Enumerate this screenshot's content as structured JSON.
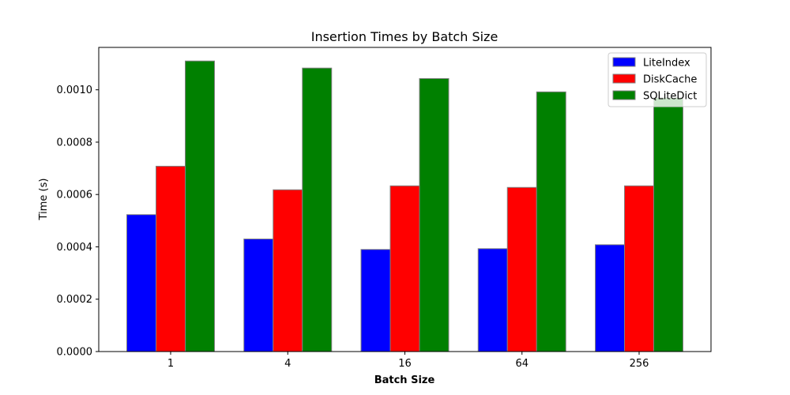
{
  "chart_data": {
    "type": "bar",
    "title": "Insertion Times by Batch Size",
    "xlabel": "Batch Size",
    "ylabel": "Time (s)",
    "categories": [
      "1",
      "4",
      "16",
      "64",
      "256"
    ],
    "series": [
      {
        "name": "LiteIndex",
        "color": "#0000ff",
        "values": [
          0.000523,
          0.00043,
          0.00039,
          0.000393,
          0.000408
        ]
      },
      {
        "name": "DiskCache",
        "color": "#ff0000",
        "values": [
          0.000708,
          0.000618,
          0.000633,
          0.000627,
          0.000633
        ]
      },
      {
        "name": "SQLiteDict",
        "color": "#008000",
        "values": [
          0.00111,
          0.001083,
          0.001043,
          0.000992,
          0.00097
        ]
      }
    ],
    "ylim": [
      0,
      0.001162
    ],
    "yticks": [
      "0.0000",
      "0.0002",
      "0.0004",
      "0.0006",
      "0.0008",
      "0.0010"
    ],
    "ytick_values": [
      0,
      0.0002,
      0.0004,
      0.0006,
      0.0008,
      0.001
    ],
    "legend": "top-right",
    "grid": false
  }
}
